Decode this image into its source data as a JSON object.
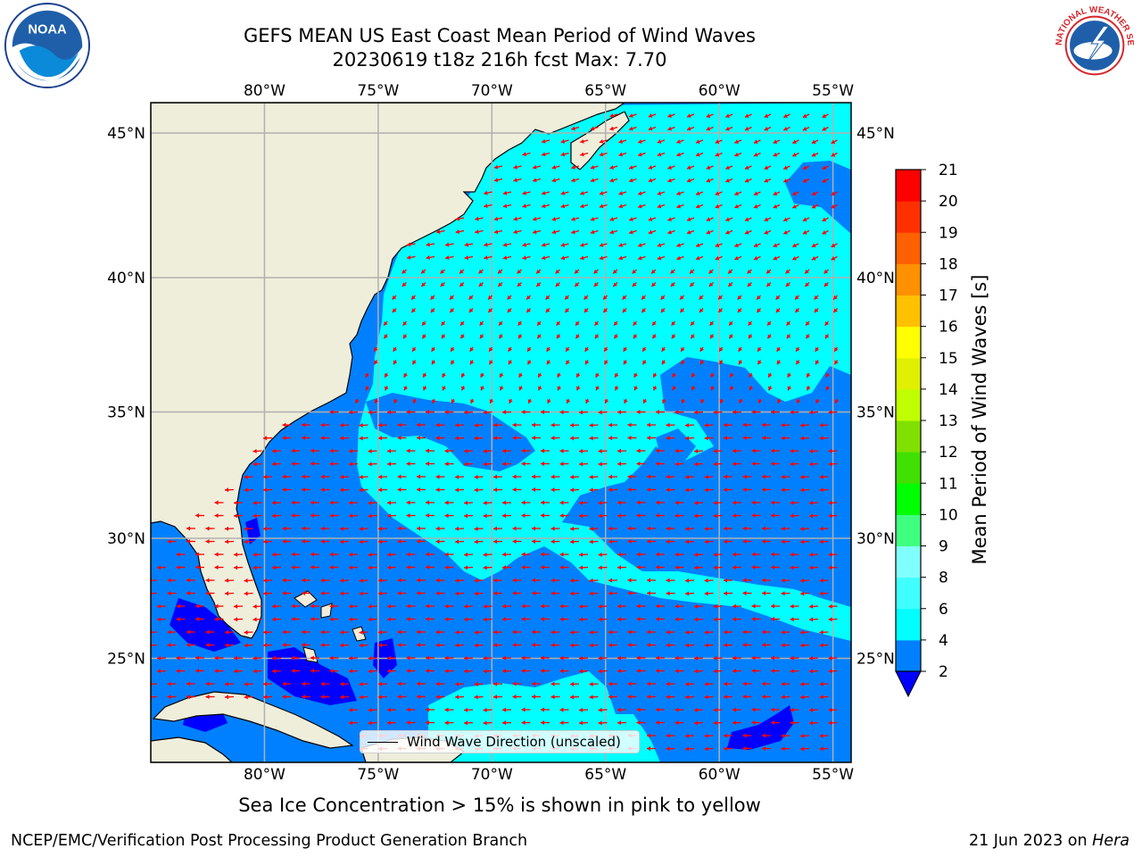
{
  "title": {
    "line1": "GEFS MEAN US East Coast Mean Period of Wind Waves",
    "line2": "20230619 t18z 216h fcst   Max: 7.70"
  },
  "logos": {
    "left": "noaa-logo",
    "right": "nws-logo",
    "left_text": "NOAA",
    "right_text": "NATIONAL WEATHER SERVICE"
  },
  "map": {
    "extent": {
      "lon": [
        -85,
        -54.2
      ],
      "lat": [
        20.5,
        46
      ]
    },
    "lon_ticks": [
      -80,
      -75,
      -70,
      -65,
      -60,
      -55
    ],
    "lat_ticks": [
      25,
      30,
      35,
      40,
      45
    ],
    "lon_labels": [
      "80°W",
      "75°W",
      "70°W",
      "65°W",
      "60°W",
      "55°W"
    ],
    "lat_labels": [
      "25°N",
      "30°N",
      "35°N",
      "40°N",
      "45°N"
    ],
    "colors": {
      "land": "#efeedb",
      "cyan": "#00ffff",
      "blue": "#0080ff",
      "dark_blue": "#0000ff",
      "grid": "#b0b0b0",
      "arrows": "#ff0000"
    }
  },
  "legend": {
    "label": "Wind Wave Direction (unscaled)"
  },
  "colorbar": {
    "label": "Mean Period of Wind Waves [s]",
    "ticks": [
      "2",
      "4",
      "6",
      "8",
      "9",
      "10",
      "11",
      "12",
      "13",
      "14",
      "15",
      "16",
      "17",
      "18",
      "19",
      "20",
      "21"
    ],
    "colors": [
      "#0080ff",
      "#00ffff",
      "#40ffff",
      "#80ffff",
      "#40ff80",
      "#00ff00",
      "#40e000",
      "#80e000",
      "#c0ff00",
      "#e0f000",
      "#ffff00",
      "#ffc000",
      "#ff9000",
      "#ff6000",
      "#ff3000",
      "#ff0000"
    ],
    "under_color": "#0000ff"
  },
  "caption": "Sea Ice Concentration > 15% is shown in pink to yellow",
  "footer": {
    "left": "NCEP/EMC/Verification Post Processing Product Generation Branch",
    "date": "21 Jun 2023 on ",
    "machine": "Hera"
  }
}
